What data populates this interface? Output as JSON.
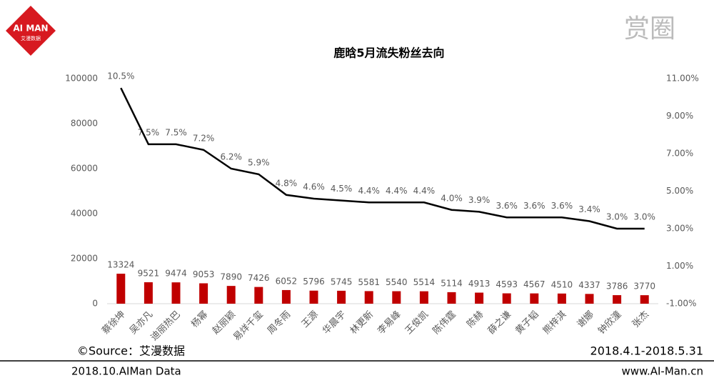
{
  "logo": {
    "text": "AI MAN",
    "subtext": "艾漫数据"
  },
  "brand": "赏圈",
  "chart_data": {
    "type": "combo",
    "title": "鹿晗5月流失粉丝去向",
    "categories": [
      "蔡徐坤",
      "吴亦凡",
      "迪丽热巴",
      "杨幂",
      "赵丽颖",
      "易烊千玺",
      "周冬雨",
      "王源",
      "华晨宇",
      "林更新",
      "李易峰",
      "王俊凯",
      "陈伟霆",
      "陈赫",
      "薛之谦",
      "黄子韬",
      "熊梓淇",
      "谢娜",
      "钟欣潼",
      "张杰"
    ],
    "series": [
      {
        "type": "bar",
        "color": "#c00000",
        "values": [
          13324,
          9521,
          9474,
          9053,
          7890,
          7426,
          6052,
          5796,
          5745,
          5581,
          5540,
          5514,
          5114,
          4913,
          4593,
          4567,
          4510,
          4337,
          3786,
          3770
        ]
      },
      {
        "type": "line",
        "axis": "y2",
        "color": "#000000",
        "values": [
          10.5,
          7.5,
          7.5,
          7.2,
          6.2,
          5.9,
          4.8,
          4.6,
          4.5,
          4.4,
          4.4,
          4.4,
          4.0,
          3.9,
          3.6,
          3.6,
          3.6,
          3.4,
          3.0,
          3.0
        ],
        "value_labels": [
          "10.5%",
          "7.5%",
          "7.5%",
          "7.2%",
          "6.2%",
          "5.9%",
          "4.8%",
          "4.6%",
          "4.5%",
          "4.4%",
          "4.4%",
          "4.4%",
          "4.0%",
          "3.9%",
          "3.6%",
          "3.6%",
          "3.6%",
          "3.4%",
          "3.0%",
          "3.0%"
        ]
      }
    ],
    "ylim": [
      0,
      100000
    ],
    "yticks": [
      0,
      20000,
      40000,
      60000,
      80000,
      100000
    ],
    "y2lim": [
      -1,
      11
    ],
    "y2ticks": [
      {
        "value": -1,
        "label": "-1.00%"
      },
      {
        "value": 1,
        "label": "1.00%"
      },
      {
        "value": 3,
        "label": "3.00%"
      },
      {
        "value": 5,
        "label": "5.00%"
      },
      {
        "value": 7,
        "label": "7.00%"
      },
      {
        "value": 9,
        "label": "9.00%"
      },
      {
        "value": 11,
        "label": "11.00%"
      }
    ],
    "grid": false
  },
  "source": "©Source：艾漫数据",
  "date_range": "2018.4.1-2018.5.31",
  "footer_left": "2018.10.AIMan Data",
  "footer_right": "www.AI-Man.cn"
}
